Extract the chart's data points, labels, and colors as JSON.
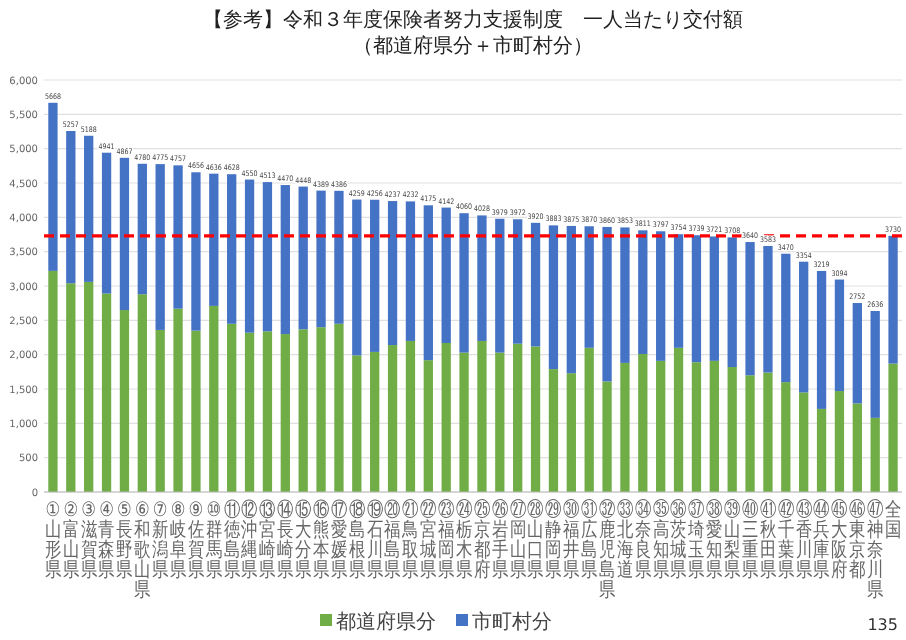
{
  "chart_data": {
    "type": "bar",
    "stacked": true,
    "title": "【参考】令和３年度保険者努力支援制度　一人当たり交付額",
    "subtitle": "（都道府県分＋市町村分）",
    "categories": [
      "①山形県",
      "②富山県",
      "③滋賀県",
      "④青森県",
      "⑤長野県",
      "⑥和歌山県",
      "⑦新潟県",
      "⑧岐阜県",
      "⑨佐賀県",
      "⑩群馬県",
      "⑪徳島県",
      "⑫沖縄県",
      "⑬宮崎県",
      "⑭長崎県",
      "⑮大分県",
      "⑯熊本県",
      "⑰愛媛県",
      "⑱島根県",
      "⑲石川県",
      "⑳福島県",
      "㉑鳥取県",
      "㉒宮城県",
      "㉓福岡県",
      "㉔栃木県",
      "㉕京都府",
      "㉖岩手県",
      "㉗岡山県",
      "㉘山口県",
      "㉙静岡県",
      "㉚福井県",
      "㉛広島県",
      "㉜鹿児島県",
      "㉝北海道",
      "㉞奈良県",
      "㉟高知県",
      "㊱茨城県",
      "㊲埼玉県",
      "㊳愛知県",
      "㊴山梨県",
      "㊵三重県",
      "㊶秋田県",
      "㊷千葉県",
      "㊸香川県",
      "㊹兵庫県",
      "㊺大阪府",
      "㊻東京都",
      "㊼神奈川県",
      "全国"
    ],
    "series": [
      {
        "name": "都道府県分",
        "color": "#70ad47",
        "values": [
          3220,
          3040,
          3060,
          2890,
          2650,
          2880,
          2360,
          2670,
          2350,
          2710,
          2450,
          2320,
          2340,
          2300,
          2370,
          2400,
          2450,
          1990,
          2040,
          2140,
          2200,
          1920,
          2170,
          2030,
          2200,
          2030,
          2160,
          2120,
          1790,
          1730,
          2100,
          1610,
          1880,
          2010,
          1910,
          2100,
          1890,
          1910,
          1820,
          1700,
          1740,
          1600,
          1450,
          1210,
          1470,
          1290,
          1080,
          1870
        ]
      },
      {
        "name": "市町村分",
        "color": "#4472c4",
        "values": [
          2448,
          2217,
          2128,
          2051,
          2217,
          1900,
          2415,
          2087,
          2306,
          1926,
          2178,
          2230,
          2173,
          2170,
          2078,
          1989,
          1936,
          2269,
          2216,
          2097,
          2032,
          2255,
          1972,
          2030,
          1828,
          1949,
          1812,
          1800,
          2093,
          2145,
          1770,
          2250,
          1973,
          1801,
          1887,
          1654,
          1849,
          1811,
          1888,
          1940,
          1843,
          1870,
          1904,
          2009,
          1624,
          1462,
          1556,
          1860
        ]
      }
    ],
    "totals": [
      "5668",
      "5257",
      "5188",
      "4941",
      "4867",
      "4780",
      "4775",
      "4757",
      "4656",
      "4636",
      "4628",
      "4550",
      "4513",
      "4470",
      "4448",
      "4389",
      "4386",
      "4259",
      "4256",
      "4237",
      "4232",
      "4175",
      "4142",
      "4060",
      "4028",
      "3979",
      "3972",
      "3920",
      "3883",
      "3875",
      "3870",
      "3860",
      "3853",
      "3811",
      "3797",
      "3754",
      "3739",
      "3721",
      "3708",
      "3640",
      "3583",
      "3470",
      "3354",
      "3219",
      "3094",
      "2752",
      "2636",
      "3730"
    ],
    "ylim": [
      0,
      6000
    ],
    "yticks": [
      0,
      {
        "value": 500,
        "label": "500"
      },
      {
        "value": 1000,
        "label": "1,000"
      },
      {
        "value": 1500,
        "label": "1,500"
      },
      {
        "value": 2000,
        "label": "2,000"
      },
      {
        "value": 2500,
        "label": "2,500"
      },
      {
        "value": 3000,
        "label": "3,000"
      },
      {
        "value": 3500,
        "label": "3,500"
      },
      {
        "value": 4000,
        "label": "4,000"
      },
      {
        "value": 4500,
        "label": "4,500"
      },
      {
        "value": 5000,
        "label": "5,000"
      },
      {
        "value": 5500,
        "label": "5,500"
      },
      {
        "value": 6000,
        "label": "6,000"
      }
    ],
    "grid": "y",
    "legend": "bottom",
    "ref_lines": [
      {
        "axis": "y",
        "value": 3730,
        "color": "#ff0000",
        "line_style": "dashed"
      }
    ],
    "annotations": [
      "135"
    ]
  }
}
